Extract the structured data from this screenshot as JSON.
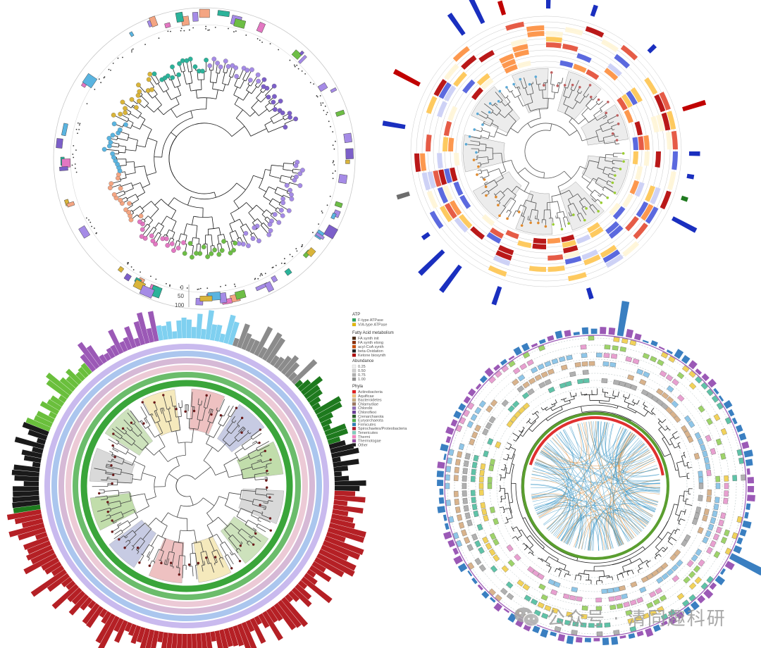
{
  "panels": {
    "top_left": {
      "scale_ticks": [
        "0",
        "50",
        "100"
      ]
    },
    "legend": {
      "atp": {
        "heading": "ATP",
        "items": [
          {
            "label": "F-type ATPase",
            "color": "#2ca25f"
          },
          {
            "label": "V/A-type ATPase",
            "color": "#e6b800"
          }
        ]
      },
      "fatty_acid": {
        "heading": "Fatty Acid metabolism",
        "items": [
          {
            "label": "FA synth init",
            "color": "#4d2b14"
          },
          {
            "label": "FA synth elong",
            "color": "#8c2d04"
          },
          {
            "label": "acyl-CoA synth",
            "color": "#cc4c02"
          },
          {
            "label": "beta-Oxidation",
            "color": "#222222"
          },
          {
            "label": "Ketone biosynth",
            "color": "#b30000"
          }
        ]
      },
      "abundance": {
        "heading": "Abundance",
        "items": [
          "0.25",
          "0.50",
          "0.75",
          "1.00"
        ]
      },
      "phyla": {
        "heading": "Phyla",
        "items": [
          {
            "label": "Actinobacteria",
            "color": "#e41a1c"
          },
          {
            "label": "Aquificae",
            "color": "#f0c27b"
          },
          {
            "label": "Bacteroidetes",
            "color": "#c7a97c"
          },
          {
            "label": "Chlamydiae",
            "color": "#9c755f"
          },
          {
            "label": "Chlorobi",
            "color": "#8e6bb8"
          },
          {
            "label": "Chloroflexi",
            "color": "#6a3d9a"
          },
          {
            "label": "Crenarchaeota",
            "color": "#2b5e2b"
          },
          {
            "label": "Euryarchaeota",
            "color": "#4daf4a"
          },
          {
            "label": "Firmicutes",
            "color": "#2c7fb8"
          },
          {
            "label": "Spirochaetes/Proteobacteria",
            "color": "#b2182b"
          },
          {
            "label": "Tenericutes",
            "color": "#7fcdbb"
          },
          {
            "label": "Thermi",
            "color": "#f781bf"
          },
          {
            "label": "Thermotogae",
            "color": "#984ea3"
          },
          {
            "label": "Other",
            "color": "#1a1a1a"
          }
        ]
      }
    }
  },
  "colors": {
    "tl_tips": [
      "#a58be6",
      "#a58be6",
      "#6dbe45",
      "#e377c2",
      "#f4a582",
      "#5ab4e0",
      "#d9b43a",
      "#2bb39a",
      "#a58be6",
      "#7c5fc9"
    ],
    "tr_heat": [
      "#fff5d6",
      "#fec44f",
      "#fd8d3c",
      "#e34a33",
      "#b30000",
      "#4a5adb",
      "#c9cdf5"
    ],
    "bl_rings": [
      "#3aa53a",
      "#b7a3e8",
      "#8fb3e8",
      "#c8a2c8",
      "#e6b8c8"
    ],
    "br_boxes": [
      "#b0b0b0",
      "#d9b38c",
      "#8fc6e8",
      "#e8a0d0",
      "#9ed36a",
      "#f2d25a",
      "#5fc3a8"
    ]
  },
  "watermark": {
    "text": "公众号 · 清同趣科研",
    "icon": "wechat-icon"
  }
}
